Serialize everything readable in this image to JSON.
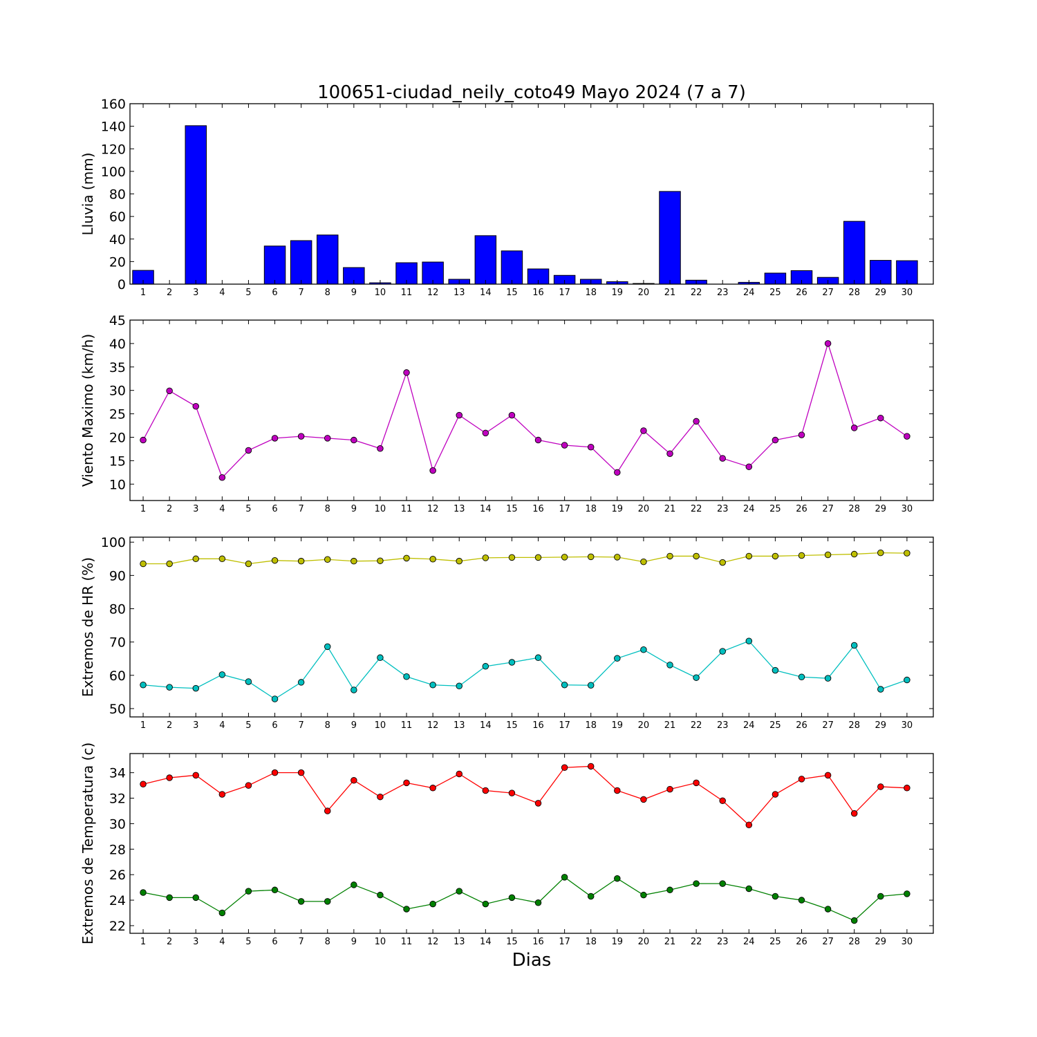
{
  "chart_data": {
    "title": "100651-ciudad_neily_coto49 Mayo 2024  (7 a 7)",
    "xlabel": "Dias",
    "days": [
      1,
      2,
      3,
      4,
      5,
      6,
      7,
      8,
      9,
      10,
      11,
      12,
      13,
      14,
      15,
      16,
      17,
      18,
      19,
      20,
      21,
      22,
      23,
      24,
      25,
      26,
      27,
      28,
      29,
      30
    ],
    "panels": [
      {
        "type": "bar",
        "ylabel": "Lluvia (mm)",
        "ylim": [
          0,
          160
        ],
        "yticks": [
          0,
          20,
          40,
          60,
          80,
          100,
          120,
          140,
          160
        ],
        "series": [
          {
            "color": "#0000ff",
            "values": [
              12.2,
              0,
              140.5,
              0,
              0,
              33.8,
              38.6,
              43.6,
              14.7,
              1.2,
              19.0,
              19.6,
              4.3,
              43.0,
              29.5,
              13.5,
              7.8,
              4.3,
              2.2,
              0.6,
              82.2,
              3.5,
              0,
              1.6,
              9.8,
              12.0,
              6.0,
              55.7,
              21.1,
              20.8
            ]
          }
        ]
      },
      {
        "type": "line",
        "ylabel": "Viento Maximo (km/h)",
        "ylim": [
          6.5,
          45
        ],
        "yticks": [
          10,
          15,
          20,
          25,
          30,
          35,
          40,
          45
        ],
        "series": [
          {
            "color": "#bf00bf",
            "values": [
              19.4,
              29.9,
              26.6,
              11.4,
              17.2,
              19.8,
              20.2,
              19.8,
              19.4,
              17.6,
              33.8,
              12.9,
              24.7,
              20.9,
              24.7,
              19.4,
              18.3,
              17.9,
              12.5,
              21.4,
              16.5,
              23.4,
              15.5,
              13.7,
              19.4,
              20.5,
              40.0,
              22.0,
              24.1,
              20.2
            ]
          }
        ]
      },
      {
        "type": "line",
        "ylabel": "Extremos de HR (%)",
        "ylim": [
          47.5,
          101.5
        ],
        "yticks": [
          50,
          60,
          70,
          80,
          90,
          100
        ],
        "series": [
          {
            "color": "#bfbf00",
            "values": [
              93.5,
              93.5,
              95.0,
              95.0,
              93.5,
              94.5,
              94.3,
              94.8,
              94.3,
              94.4,
              95.2,
              94.9,
              94.3,
              95.3,
              95.4,
              95.4,
              95.5,
              95.6,
              95.5,
              94.1,
              95.8,
              95.8,
              93.9,
              95.8,
              95.8,
              96.0,
              96.2,
              96.4,
              96.8,
              96.7
            ]
          },
          {
            "color": "#00bfbf",
            "values": [
              57.1,
              56.4,
              56.1,
              60.2,
              58.1,
              52.9,
              57.9,
              68.6,
              55.6,
              65.3,
              59.6,
              57.1,
              56.8,
              62.7,
              63.9,
              65.3,
              57.1,
              57.0,
              65.1,
              67.7,
              63.1,
              59.3,
              67.2,
              70.3,
              61.5,
              59.5,
              59.1,
              69.0,
              55.8,
              58.6
            ]
          }
        ]
      },
      {
        "type": "line",
        "ylabel": "Extremos de Temperatura (c)",
        "ylim": [
          21.4,
          35.5
        ],
        "yticks": [
          22,
          24,
          26,
          28,
          30,
          32,
          34
        ],
        "series": [
          {
            "color": "#ff0000",
            "values": [
              33.1,
              33.6,
              33.8,
              32.3,
              33.0,
              34.0,
              34.0,
              31.0,
              33.4,
              32.1,
              33.2,
              32.8,
              33.9,
              32.6,
              32.4,
              31.6,
              34.4,
              34.5,
              32.6,
              31.9,
              32.7,
              33.2,
              31.8,
              29.9,
              32.3,
              33.5,
              33.8,
              30.8,
              32.9,
              32.8
            ]
          },
          {
            "color": "#008000",
            "values": [
              24.6,
              24.2,
              24.2,
              23.0,
              24.7,
              24.8,
              23.9,
              23.9,
              25.2,
              24.4,
              23.3,
              23.7,
              24.7,
              23.7,
              24.2,
              23.8,
              25.8,
              24.3,
              25.7,
              24.4,
              24.8,
              25.3,
              25.3,
              24.9,
              24.3,
              24.0,
              23.3,
              22.4,
              24.3,
              24.5
            ]
          }
        ]
      }
    ]
  }
}
